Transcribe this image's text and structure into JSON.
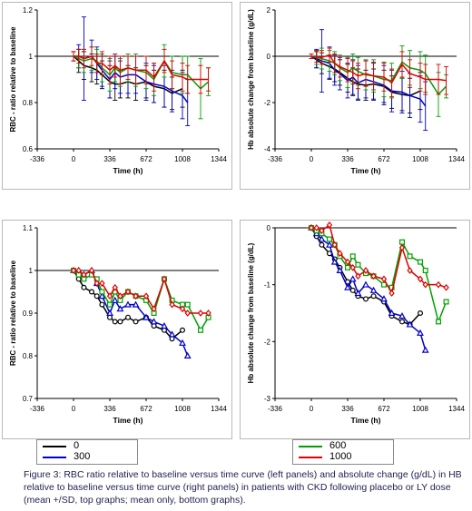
{
  "legend_left": [
    {
      "label": "0",
      "color": "#000000",
      "marker": "circle"
    },
    {
      "label": "300",
      "color": "#0000cc",
      "marker": "triangle"
    }
  ],
  "legend_right": [
    {
      "label": "600",
      "color": "#00a000",
      "marker": "square"
    },
    {
      "label": "1000",
      "color": "#e00000",
      "marker": "diamond"
    }
  ],
  "caption": "Figure 3:  RBC ratio relative to baseline versus time curve (left panels) and absolute change (g/dL) in HB relative to baseline versus time curve (right panels) in patients with CKD following placebo or LY dose (mean +/SD, top graphs; mean only, bottom graphs).",
  "chart_data": [
    {
      "type": "line",
      "xlabel": "Time (h)",
      "ylabel": "RBC - ratio relative to baseline",
      "xlim": [
        -336,
        1344
      ],
      "xticks": [
        "-336",
        "0",
        "336",
        "672",
        "1008",
        "1344"
      ],
      "ylim": [
        0.6,
        1.2
      ],
      "yticks": [
        "0.6",
        "0.8",
        "1",
        "1.2"
      ],
      "reference_line": 1,
      "error_bars": true,
      "series": [
        {
          "name": "0",
          "color": "#000000",
          "x": [
            0,
            48,
            96,
            168,
            216,
            264,
            336,
            384,
            432,
            504,
            576,
            672,
            744,
            840,
            912,
            1008
          ],
          "y": [
            1.0,
            0.98,
            0.96,
            0.95,
            0.94,
            0.92,
            0.89,
            0.88,
            0.88,
            0.89,
            0.88,
            0.89,
            0.87,
            0.86,
            0.84,
            0.86
          ],
          "sd": [
            0.02,
            0.05,
            0.06,
            0.06,
            0.06,
            0.06,
            0.07,
            0.07,
            0.06,
            0.07,
            0.07,
            0.07,
            0.07,
            0.08,
            0.07,
            0.08
          ]
        },
        {
          "name": "300",
          "color": "#0000cc",
          "x": [
            0,
            48,
            96,
            168,
            216,
            264,
            336,
            384,
            432,
            504,
            576,
            672,
            744,
            840,
            912,
            1008,
            1056
          ],
          "y": [
            1.0,
            1.0,
            0.99,
            1.0,
            0.97,
            0.94,
            0.9,
            0.93,
            0.91,
            0.92,
            0.92,
            0.89,
            0.88,
            0.87,
            0.85,
            0.83,
            0.8
          ],
          "sd": [
            0.02,
            0.05,
            0.18,
            0.07,
            0.07,
            0.07,
            0.08,
            0.07,
            0.07,
            0.08,
            0.08,
            0.08,
            0.08,
            0.09,
            0.09,
            0.1,
            0.1
          ]
        },
        {
          "name": "600",
          "color": "#00a000",
          "x": [
            0,
            48,
            96,
            168,
            216,
            264,
            336,
            384,
            432,
            504,
            576,
            672,
            744,
            840,
            912,
            1008,
            1056,
            1176,
            1248
          ],
          "y": [
            1.0,
            0.99,
            0.98,
            0.99,
            0.98,
            0.95,
            0.92,
            0.95,
            0.93,
            0.95,
            0.94,
            0.93,
            0.9,
            0.98,
            0.93,
            0.92,
            0.92,
            0.86,
            0.89
          ],
          "sd": [
            0.02,
            0.04,
            0.05,
            0.05,
            0.05,
            0.06,
            0.07,
            0.06,
            0.06,
            0.06,
            0.07,
            0.07,
            0.07,
            0.07,
            0.07,
            0.08,
            0.08,
            0.13,
            0.06
          ]
        },
        {
          "name": "1000",
          "color": "#e00000",
          "x": [
            0,
            48,
            96,
            168,
            216,
            264,
            336,
            384,
            432,
            504,
            576,
            672,
            744,
            840,
            912,
            1008,
            1056,
            1176,
            1248
          ],
          "y": [
            1.0,
            1.0,
            0.99,
            1.0,
            0.97,
            0.97,
            0.94,
            0.96,
            0.94,
            0.95,
            0.94,
            0.94,
            0.91,
            0.98,
            0.92,
            0.91,
            0.9,
            0.9,
            0.9
          ],
          "sd": [
            0.02,
            0.03,
            0.04,
            0.04,
            0.04,
            0.05,
            0.06,
            0.05,
            0.06,
            0.05,
            0.06,
            0.06,
            0.06,
            0.05,
            0.06,
            0.06,
            0.06,
            0.06,
            0.05
          ]
        }
      ]
    },
    {
      "type": "line",
      "xlabel": "Time (h)",
      "ylabel": "Hb absolute change from baseline (g/dL)",
      "xlim": [
        -336,
        1344
      ],
      "xticks": [
        "-336",
        "0",
        "336",
        "672",
        "1008",
        "1344"
      ],
      "ylim": [
        -4,
        2
      ],
      "yticks": [
        "-4",
        "-2",
        "0",
        "2"
      ],
      "reference_line": 0,
      "error_bars": true,
      "series": [
        {
          "name": "0",
          "color": "#000000",
          "x": [
            0,
            48,
            96,
            168,
            216,
            264,
            336,
            384,
            432,
            504,
            576,
            672,
            744,
            840,
            912,
            1008
          ],
          "y": [
            0,
            -0.15,
            -0.3,
            -0.45,
            -0.55,
            -0.7,
            -0.95,
            -1.1,
            -1.2,
            -1.25,
            -1.2,
            -1.3,
            -1.55,
            -1.65,
            -1.7,
            -1.5
          ],
          "sd": [
            0.1,
            0.35,
            0.45,
            0.5,
            0.55,
            0.55,
            0.6,
            0.6,
            0.65,
            0.65,
            0.65,
            0.7,
            0.7,
            0.7,
            0.75,
            0.8
          ]
        },
        {
          "name": "300",
          "color": "#0000cc",
          "x": [
            0,
            48,
            96,
            168,
            216,
            264,
            336,
            384,
            432,
            504,
            576,
            672,
            744,
            840,
            912,
            1008,
            1056
          ],
          "y": [
            0,
            -0.1,
            -0.2,
            -0.3,
            -0.6,
            -0.75,
            -1.05,
            -0.9,
            -1.15,
            -1.0,
            -1.1,
            -1.25,
            -1.5,
            -1.55,
            -1.7,
            -1.85,
            -2.15
          ],
          "sd": [
            0.1,
            0.4,
            1.35,
            0.7,
            0.65,
            0.7,
            0.75,
            0.75,
            0.75,
            0.8,
            0.8,
            0.85,
            0.9,
            0.9,
            0.95,
            1.0,
            1.05
          ]
        },
        {
          "name": "600",
          "color": "#00a000",
          "x": [
            0,
            48,
            96,
            168,
            216,
            264,
            336,
            384,
            432,
            504,
            576,
            672,
            744,
            840,
            912,
            1008,
            1056,
            1176,
            1248
          ],
          "y": [
            0,
            -0.05,
            -0.1,
            -0.2,
            -0.3,
            -0.5,
            -0.7,
            -0.5,
            -0.65,
            -0.8,
            -0.85,
            -1.0,
            -1.05,
            -0.25,
            -0.5,
            -0.6,
            -0.75,
            -1.65,
            -1.3
          ],
          "sd": [
            0.1,
            0.3,
            0.45,
            0.45,
            0.5,
            0.55,
            0.65,
            0.6,
            0.6,
            0.65,
            0.7,
            0.75,
            0.75,
            0.7,
            0.75,
            0.8,
            0.8,
            0.95,
            0.5
          ]
        },
        {
          "name": "1000",
          "color": "#e00000",
          "x": [
            0,
            48,
            96,
            168,
            216,
            264,
            336,
            384,
            432,
            504,
            576,
            672,
            744,
            840,
            912,
            1008,
            1056,
            1176,
            1248
          ],
          "y": [
            0,
            0.0,
            -0.05,
            0.05,
            -0.3,
            -0.45,
            -0.6,
            -0.7,
            -0.85,
            -0.75,
            -0.85,
            -0.9,
            -1.15,
            -0.35,
            -0.75,
            -0.9,
            -1.0,
            -1.0,
            -1.05
          ],
          "sd": [
            0.1,
            0.25,
            0.3,
            0.3,
            0.4,
            0.45,
            0.5,
            0.5,
            0.55,
            0.55,
            0.6,
            0.6,
            0.6,
            0.55,
            0.6,
            0.6,
            0.65,
            0.65,
            0.6
          ]
        }
      ]
    },
    {
      "type": "line",
      "xlabel": "Time (h)",
      "ylabel": "RBC - ratio relative to baseline",
      "xlim": [
        -336,
        1344
      ],
      "xticks": [
        "-336",
        "0",
        "336",
        "672",
        "1008",
        "1344"
      ],
      "ylim": [
        0.7,
        1.1
      ],
      "yticks": [
        "0.7",
        "0.8",
        "0.9",
        "1",
        "1.1"
      ],
      "reference_line": 1,
      "error_bars": false,
      "series": [
        {
          "name": "0",
          "color": "#000000",
          "x": [
            0,
            48,
            96,
            168,
            216,
            264,
            336,
            384,
            432,
            504,
            576,
            672,
            744,
            840,
            912,
            1008
          ],
          "y": [
            1.0,
            0.98,
            0.96,
            0.95,
            0.94,
            0.92,
            0.89,
            0.88,
            0.88,
            0.89,
            0.88,
            0.89,
            0.87,
            0.86,
            0.84,
            0.86
          ]
        },
        {
          "name": "300",
          "color": "#0000cc",
          "x": [
            0,
            48,
            96,
            168,
            216,
            264,
            336,
            384,
            432,
            504,
            576,
            672,
            744,
            840,
            912,
            1008,
            1056
          ],
          "y": [
            1.0,
            1.0,
            0.99,
            1.0,
            0.97,
            0.94,
            0.9,
            0.93,
            0.91,
            0.92,
            0.92,
            0.89,
            0.88,
            0.87,
            0.85,
            0.83,
            0.8
          ]
        },
        {
          "name": "600",
          "color": "#00a000",
          "x": [
            0,
            48,
            96,
            168,
            216,
            264,
            336,
            384,
            432,
            504,
            576,
            672,
            744,
            840,
            912,
            1008,
            1056,
            1176,
            1248
          ],
          "y": [
            1.0,
            0.99,
            0.98,
            0.99,
            0.98,
            0.95,
            0.92,
            0.95,
            0.93,
            0.95,
            0.94,
            0.93,
            0.9,
            0.98,
            0.93,
            0.92,
            0.92,
            0.86,
            0.89
          ]
        },
        {
          "name": "1000",
          "color": "#e00000",
          "x": [
            0,
            48,
            96,
            168,
            216,
            264,
            336,
            384,
            432,
            504,
            576,
            672,
            744,
            840,
            912,
            1008,
            1056,
            1176,
            1248
          ],
          "y": [
            1.0,
            1.0,
            0.99,
            1.0,
            0.97,
            0.97,
            0.94,
            0.96,
            0.94,
            0.95,
            0.94,
            0.94,
            0.91,
            0.98,
            0.92,
            0.91,
            0.9,
            0.9,
            0.9
          ]
        }
      ]
    },
    {
      "type": "line",
      "xlabel": "Time (h)",
      "ylabel": "Hb absolute change from baseline (g/dL)",
      "xlim": [
        -336,
        1344
      ],
      "xticks": [
        "-336",
        "0",
        "336",
        "672",
        "1008",
        "1344"
      ],
      "ylim": [
        -3,
        0
      ],
      "yticks": [
        "-3",
        "-2",
        "-1",
        "0"
      ],
      "reference_line": 0,
      "error_bars": false,
      "series": [
        {
          "name": "0",
          "color": "#000000",
          "x": [
            0,
            48,
            96,
            168,
            216,
            264,
            336,
            384,
            432,
            504,
            576,
            672,
            744,
            840,
            912,
            1008
          ],
          "y": [
            0,
            -0.15,
            -0.3,
            -0.45,
            -0.55,
            -0.7,
            -0.95,
            -1.1,
            -1.2,
            -1.25,
            -1.2,
            -1.3,
            -1.55,
            -1.65,
            -1.7,
            -1.5
          ]
        },
        {
          "name": "300",
          "color": "#0000cc",
          "x": [
            0,
            48,
            96,
            168,
            216,
            264,
            336,
            384,
            432,
            504,
            576,
            672,
            744,
            840,
            912,
            1008,
            1056
          ],
          "y": [
            0,
            -0.1,
            -0.2,
            -0.3,
            -0.6,
            -0.75,
            -1.05,
            -0.9,
            -1.15,
            -1.0,
            -1.1,
            -1.25,
            -1.5,
            -1.55,
            -1.7,
            -1.85,
            -2.15
          ]
        },
        {
          "name": "600",
          "color": "#00a000",
          "x": [
            0,
            48,
            96,
            168,
            216,
            264,
            336,
            384,
            432,
            504,
            576,
            672,
            744,
            840,
            912,
            1008,
            1056,
            1176,
            1248
          ],
          "y": [
            0,
            -0.05,
            -0.1,
            -0.2,
            -0.3,
            -0.5,
            -0.7,
            -0.5,
            -0.65,
            -0.8,
            -0.85,
            -1.0,
            -1.05,
            -0.25,
            -0.5,
            -0.6,
            -0.75,
            -1.65,
            -1.3
          ]
        },
        {
          "name": "1000",
          "color": "#e00000",
          "x": [
            0,
            48,
            96,
            168,
            216,
            264,
            336,
            384,
            432,
            504,
            576,
            672,
            744,
            840,
            912,
            1008,
            1056,
            1176,
            1248
          ],
          "y": [
            0,
            0.0,
            -0.05,
            0.05,
            -0.3,
            -0.45,
            -0.6,
            -0.7,
            -0.85,
            -0.75,
            -0.85,
            -0.9,
            -1.15,
            -0.35,
            -0.75,
            -0.9,
            -1.0,
            -1.0,
            -1.05
          ]
        }
      ]
    }
  ]
}
